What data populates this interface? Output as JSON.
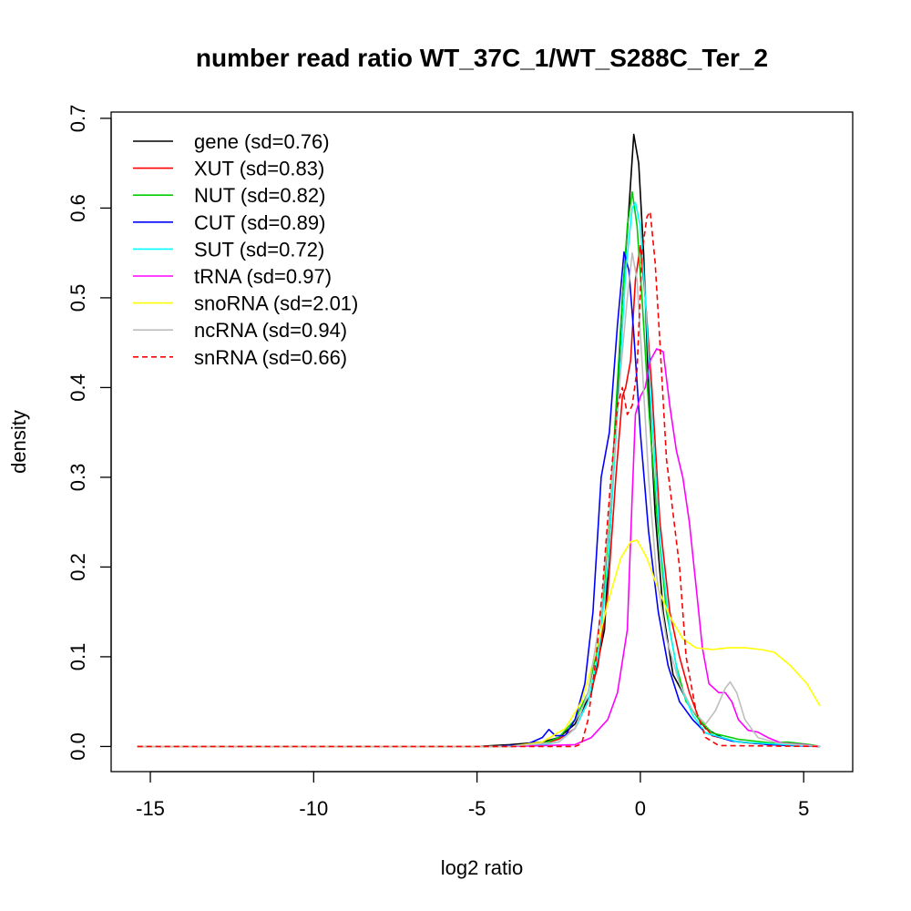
{
  "chart_data": {
    "type": "line",
    "title": "number read ratio WT_37C_1/WT_S288C_Ter_2",
    "xlabel": "log2 ratio",
    "ylabel": "density",
    "xlim": [
      -16.2,
      6.5
    ],
    "ylim": [
      -0.028,
      0.707
    ],
    "xticks": [
      -15,
      -10,
      -5,
      0,
      5
    ],
    "yticks": [
      0.0,
      0.1,
      0.2,
      0.3,
      0.4,
      0.5,
      0.6,
      0.7
    ],
    "ytick_labels": [
      "0.0",
      "0.1",
      "0.2",
      "0.3",
      "0.4",
      "0.5",
      "0.6",
      "0.7"
    ],
    "grid": false,
    "legend": "top-left",
    "series": [
      {
        "name": "gene (sd=0.76)",
        "color": "#000000",
        "dash": "solid",
        "points": [
          [
            -15.4,
            0
          ],
          [
            -5,
            0
          ],
          [
            -4,
            0.002
          ],
          [
            -3,
            0.005
          ],
          [
            -2.5,
            0.01
          ],
          [
            -2,
            0.025
          ],
          [
            -1.5,
            0.06
          ],
          [
            -1.1,
            0.13
          ],
          [
            -0.8,
            0.32
          ],
          [
            -0.55,
            0.5
          ],
          [
            -0.35,
            0.6
          ],
          [
            -0.2,
            0.682
          ],
          [
            -0.05,
            0.65
          ],
          [
            0.1,
            0.55
          ],
          [
            0.25,
            0.4
          ],
          [
            0.45,
            0.26
          ],
          [
            0.7,
            0.15
          ],
          [
            1.0,
            0.08
          ],
          [
            1.3,
            0.06
          ],
          [
            1.6,
            0.04
          ],
          [
            2.0,
            0.02
          ],
          [
            2.5,
            0.01
          ],
          [
            3,
            0.005
          ],
          [
            4,
            0.002
          ],
          [
            5.5,
            0
          ]
        ]
      },
      {
        "name": "XUT (sd=0.83)",
        "color": "#ff0000",
        "dash": "solid",
        "points": [
          [
            -15.4,
            0
          ],
          [
            -4.5,
            0
          ],
          [
            -3,
            0.003
          ],
          [
            -2.5,
            0.008
          ],
          [
            -2,
            0.02
          ],
          [
            -1.6,
            0.05
          ],
          [
            -1.3,
            0.09
          ],
          [
            -1.0,
            0.17
          ],
          [
            -0.75,
            0.3
          ],
          [
            -0.55,
            0.39
          ],
          [
            -0.45,
            0.4
          ],
          [
            -0.3,
            0.43
          ],
          [
            -0.15,
            0.52
          ],
          [
            0,
            0.558
          ],
          [
            0.15,
            0.5
          ],
          [
            0.35,
            0.4
          ],
          [
            0.6,
            0.25
          ],
          [
            0.9,
            0.15
          ],
          [
            1.2,
            0.1
          ],
          [
            1.5,
            0.06
          ],
          [
            1.8,
            0.03
          ],
          [
            2.2,
            0.012
          ],
          [
            3,
            0.005
          ],
          [
            4,
            0.002
          ],
          [
            5.5,
            0
          ]
        ]
      },
      {
        "name": "NUT (sd=0.82)",
        "color": "#00cd00",
        "dash": "solid",
        "points": [
          [
            -15.4,
            0
          ],
          [
            -4.5,
            0
          ],
          [
            -3,
            0.003
          ],
          [
            -2.5,
            0.01
          ],
          [
            -2,
            0.03
          ],
          [
            -1.6,
            0.06
          ],
          [
            -1.2,
            0.13
          ],
          [
            -0.9,
            0.28
          ],
          [
            -0.6,
            0.47
          ],
          [
            -0.4,
            0.58
          ],
          [
            -0.25,
            0.618
          ],
          [
            -0.1,
            0.58
          ],
          [
            0.05,
            0.5
          ],
          [
            0.25,
            0.38
          ],
          [
            0.5,
            0.26
          ],
          [
            0.8,
            0.15
          ],
          [
            1.1,
            0.09
          ],
          [
            1.4,
            0.05
          ],
          [
            1.8,
            0.03
          ],
          [
            2.2,
            0.015
          ],
          [
            3,
            0.008
          ],
          [
            4,
            0.004
          ],
          [
            4.5,
            0.005
          ],
          [
            5.2,
            0.002
          ],
          [
            5.5,
            0
          ]
        ]
      },
      {
        "name": "CUT (sd=0.89)",
        "color": "#0000ff",
        "dash": "solid",
        "points": [
          [
            -15.4,
            0
          ],
          [
            -4.5,
            0
          ],
          [
            -3.5,
            0.002
          ],
          [
            -3.0,
            0.01
          ],
          [
            -2.8,
            0.019
          ],
          [
            -2.6,
            0.012
          ],
          [
            -2.3,
            0.012
          ],
          [
            -2.0,
            0.03
          ],
          [
            -1.7,
            0.07
          ],
          [
            -1.45,
            0.15
          ],
          [
            -1.2,
            0.3
          ],
          [
            -0.95,
            0.35
          ],
          [
            -0.7,
            0.47
          ],
          [
            -0.5,
            0.551
          ],
          [
            -0.35,
            0.53
          ],
          [
            -0.2,
            0.46
          ],
          [
            0,
            0.35
          ],
          [
            0.25,
            0.24
          ],
          [
            0.55,
            0.15
          ],
          [
            0.85,
            0.09
          ],
          [
            1.2,
            0.05
          ],
          [
            1.6,
            0.03
          ],
          [
            2.0,
            0.015
          ],
          [
            2.8,
            0.006
          ],
          [
            4,
            0.002
          ],
          [
            5.5,
            0
          ]
        ]
      },
      {
        "name": "SUT (sd=0.72)",
        "color": "#00ffff",
        "dash": "solid",
        "points": [
          [
            -15.4,
            0
          ],
          [
            -4,
            0
          ],
          [
            -3,
            0.002
          ],
          [
            -2.5,
            0.005
          ],
          [
            -2,
            0.02
          ],
          [
            -1.6,
            0.05
          ],
          [
            -1.3,
            0.1
          ],
          [
            -1.0,
            0.2
          ],
          [
            -0.7,
            0.37
          ],
          [
            -0.45,
            0.53
          ],
          [
            -0.25,
            0.6
          ],
          [
            -0.15,
            0.606
          ],
          [
            0,
            0.58
          ],
          [
            0.15,
            0.5
          ],
          [
            0.35,
            0.37
          ],
          [
            0.6,
            0.23
          ],
          [
            0.9,
            0.13
          ],
          [
            1.2,
            0.07
          ],
          [
            1.6,
            0.035
          ],
          [
            2.0,
            0.015
          ],
          [
            3,
            0.005
          ],
          [
            5.5,
            0
          ]
        ]
      },
      {
        "name": "tRNA (sd=0.97)",
        "color": "#ff00ff",
        "dash": "solid",
        "points": [
          [
            -15.4,
            0
          ],
          [
            -4,
            0
          ],
          [
            -2,
            0.002
          ],
          [
            -1.5,
            0.01
          ],
          [
            -1.0,
            0.03
          ],
          [
            -0.7,
            0.06
          ],
          [
            -0.4,
            0.13
          ],
          [
            -0.25,
            0.28
          ],
          [
            -0.15,
            0.37
          ],
          [
            0,
            0.39
          ],
          [
            0.15,
            0.4
          ],
          [
            0.3,
            0.43
          ],
          [
            0.5,
            0.443
          ],
          [
            0.7,
            0.44
          ],
          [
            0.9,
            0.38
          ],
          [
            1.1,
            0.33
          ],
          [
            1.3,
            0.3
          ],
          [
            1.5,
            0.25
          ],
          [
            1.7,
            0.18
          ],
          [
            1.9,
            0.11
          ],
          [
            2.1,
            0.07
          ],
          [
            2.4,
            0.06
          ],
          [
            2.6,
            0.06
          ],
          [
            2.8,
            0.05
          ],
          [
            3.0,
            0.03
          ],
          [
            3.3,
            0.018
          ],
          [
            3.6,
            0.016
          ],
          [
            3.9,
            0.01
          ],
          [
            4.3,
            0.004
          ],
          [
            5.0,
            0.002
          ],
          [
            5.5,
            0
          ]
        ]
      },
      {
        "name": "snoRNA (sd=2.01)",
        "color": "#ffff00",
        "dash": "solid",
        "points": [
          [
            -15.4,
            0
          ],
          [
            -4,
            0
          ],
          [
            -3,
            0.005
          ],
          [
            -2.3,
            0.02
          ],
          [
            -1.8,
            0.05
          ],
          [
            -1.4,
            0.1
          ],
          [
            -1.0,
            0.16
          ],
          [
            -0.6,
            0.21
          ],
          [
            -0.3,
            0.228
          ],
          [
            -0.1,
            0.23
          ],
          [
            0.2,
            0.21
          ],
          [
            0.5,
            0.18
          ],
          [
            0.9,
            0.145
          ],
          [
            1.3,
            0.12
          ],
          [
            1.7,
            0.11
          ],
          [
            2.2,
            0.108
          ],
          [
            2.7,
            0.11
          ],
          [
            3.2,
            0.11
          ],
          [
            3.7,
            0.108
          ],
          [
            4.1,
            0.105
          ],
          [
            4.6,
            0.09
          ],
          [
            5.1,
            0.07
          ],
          [
            5.5,
            0.045
          ]
        ]
      },
      {
        "name": "ncRNA (sd=0.94)",
        "color": "#bebebe",
        "dash": "solid",
        "points": [
          [
            -15.4,
            0
          ],
          [
            -4,
            0
          ],
          [
            -2.5,
            0.005
          ],
          [
            -2,
            0.02
          ],
          [
            -1.6,
            0.06
          ],
          [
            -1.2,
            0.15
          ],
          [
            -0.9,
            0.28
          ],
          [
            -0.6,
            0.42
          ],
          [
            -0.4,
            0.5
          ],
          [
            -0.25,
            0.55
          ],
          [
            -0.1,
            0.52
          ],
          [
            0.05,
            0.43
          ],
          [
            0.25,
            0.3
          ],
          [
            0.5,
            0.19
          ],
          [
            0.8,
            0.12
          ],
          [
            1.2,
            0.07
          ],
          [
            1.6,
            0.04
          ],
          [
            2.0,
            0.025
          ],
          [
            2.3,
            0.04
          ],
          [
            2.6,
            0.065
          ],
          [
            2.75,
            0.072
          ],
          [
            2.95,
            0.06
          ],
          [
            3.2,
            0.03
          ],
          [
            3.6,
            0.01
          ],
          [
            4.2,
            0.004
          ],
          [
            5.5,
            0
          ]
        ]
      },
      {
        "name": "snRNA (sd=0.66)",
        "color": "#ff0000",
        "dash": "dashed",
        "points": [
          [
            -15.4,
            0
          ],
          [
            -2,
            0
          ],
          [
            -1.8,
            0.003
          ],
          [
            -1.6,
            0.03
          ],
          [
            -1.35,
            0.1
          ],
          [
            -1.15,
            0.18
          ],
          [
            -0.9,
            0.3
          ],
          [
            -0.7,
            0.38
          ],
          [
            -0.55,
            0.4
          ],
          [
            -0.4,
            0.37
          ],
          [
            -0.25,
            0.38
          ],
          [
            -0.1,
            0.42
          ],
          [
            0.05,
            0.55
          ],
          [
            0.2,
            0.59
          ],
          [
            0.3,
            0.596
          ],
          [
            0.45,
            0.54
          ],
          [
            0.6,
            0.45
          ],
          [
            0.8,
            0.32
          ],
          [
            1.0,
            0.26
          ],
          [
            1.2,
            0.2
          ],
          [
            1.4,
            0.1
          ],
          [
            1.7,
            0.04
          ],
          [
            2.0,
            0.01
          ],
          [
            2.4,
            0.001
          ],
          [
            5.5,
            0
          ]
        ]
      }
    ]
  }
}
